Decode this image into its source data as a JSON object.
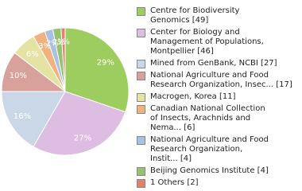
{
  "chart_data": {
    "type": "pie",
    "categories": [
      "Centre for Biodiversity\nGenomics [49]",
      "Center for Biology and\nManagement of Populations,\nMontpellier [46]",
      "Mined from GenBank, NCBI [27]",
      "National Agriculture and Food\nResearch Organization, Insec... [17]",
      "Macrogen, Korea [11]",
      "Canadian National Collection\nof Insects, Arachnids and\nNema... [6]",
      "National Agriculture and Food\nResearch Organization,\nInstit... [4]",
      "Beijing Genomics Institute [4]",
      "1 Others [2]"
    ],
    "values": [
      29,
      27,
      16,
      10,
      6,
      3,
      2,
      2,
      1
    ],
    "value_labels": [
      "29%",
      "27%",
      "16%",
      "10%",
      "6%",
      "3%",
      "2%",
      "2%",
      "1%"
    ],
    "colors": [
      "#9dcc5f",
      "#ddbde1",
      "#c9d7e6",
      "#d9a19b",
      "#e4e3a3",
      "#f0b27f",
      "#a9c0e2",
      "#94c26e",
      "#e0836a"
    ]
  }
}
